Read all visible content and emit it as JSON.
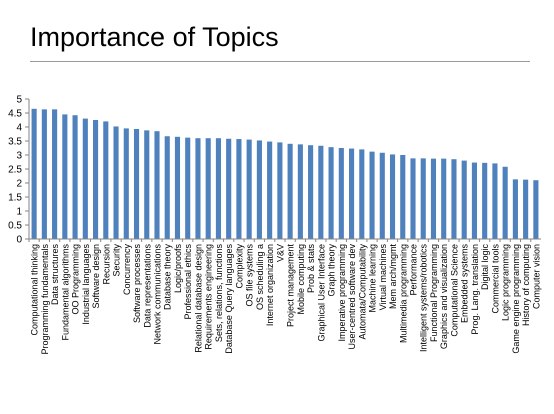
{
  "slide": {
    "title": "Importance of Topics"
  },
  "colors": {
    "bar": "#4f81bd",
    "axis": "#868686"
  },
  "chart_data": {
    "type": "bar",
    "title": "Importance of Topics",
    "xlabel": "",
    "ylabel": "",
    "ylim": [
      0,
      5
    ],
    "yticks": [
      "0",
      "0.5",
      "1",
      "1.5",
      "2",
      "2.5",
      "3",
      "3.5",
      "4",
      "4.5",
      "5"
    ],
    "grid": false,
    "legend": "none",
    "categories": [
      "Computational thinking",
      "Programming fundamentals",
      "Data structures",
      "Fundamental algorithms",
      "OO Programming",
      "Industrial languages",
      "Software design",
      "Recursion",
      "Security",
      "Concurrency",
      "Software processes",
      "Data representations",
      "Network communications",
      "Database theory",
      "Logic/proofs",
      "Professional ethics",
      "Relational database design",
      "Requirements engineering",
      "Sets, relations, functions",
      "Database Query languages",
      "Complexity",
      "OS file systems",
      "OS scheduling a",
      "Internet organization",
      "V&V",
      "Project management",
      "Mobile computing",
      "Prob & stats",
      "Graphical User Interface",
      "Graph theory",
      "Imperative programming",
      "User-centred software dev",
      "Automata/Computability",
      "Machine learning",
      "Virtual machines",
      "Mem arch/mgmt",
      "Multimedia programming",
      "Performance",
      "Intelligent systems/robotics",
      "Functional Programming",
      "Graphics and visualization",
      "Computational Science",
      "Embedded systems",
      "Prog. Lang. translation",
      "Digital logic",
      "Commercial tools",
      "Logic programming",
      "Game engine programming",
      "History of computing",
      "Computer vision"
    ],
    "values": [
      4.65,
      4.63,
      4.63,
      4.45,
      4.42,
      4.3,
      4.25,
      4.2,
      4.02,
      3.95,
      3.93,
      3.88,
      3.85,
      3.67,
      3.65,
      3.62,
      3.6,
      3.6,
      3.6,
      3.58,
      3.57,
      3.55,
      3.52,
      3.48,
      3.45,
      3.4,
      3.38,
      3.35,
      3.33,
      3.28,
      3.25,
      3.23,
      3.2,
      3.12,
      3.08,
      3.02,
      3.0,
      2.88,
      2.88,
      2.87,
      2.87,
      2.85,
      2.8,
      2.73,
      2.72,
      2.7,
      2.58,
      2.13,
      2.12,
      2.1
    ]
  }
}
